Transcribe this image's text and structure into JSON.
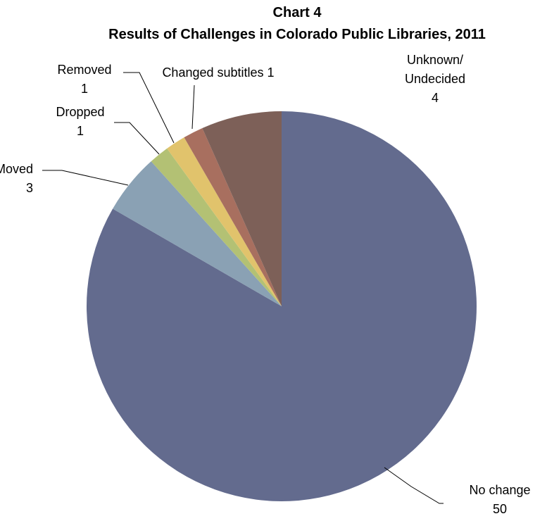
{
  "chart_data": {
    "type": "pie",
    "title": "Chart 4",
    "subtitle": "Results of Challenges in Colorado Public Libraries, 2011",
    "legend": "none",
    "slices": [
      {
        "name": "No change",
        "label_lines": [
          "No change"
        ],
        "value": 50,
        "value_text": "50",
        "color": "#636b8e"
      },
      {
        "name": "Moved",
        "label_lines": [
          "Moved"
        ],
        "value": 3,
        "value_text": "3",
        "color": "#8aa1b4"
      },
      {
        "name": "Dropped",
        "label_lines": [
          "Dropped"
        ],
        "value": 1,
        "value_text": "1",
        "color": "#b3c174"
      },
      {
        "name": "Removed",
        "label_lines": [
          "Removed"
        ],
        "value": 1,
        "value_text": "1",
        "color": "#e1c36c"
      },
      {
        "name": "Changed subtitles",
        "label_lines": [
          "Changed subtitles"
        ],
        "value": 1,
        "value_text": "1",
        "color": "#a86f5f"
      },
      {
        "name": "Unknown/ Undecided",
        "label_lines": [
          "Unknown/",
          "Undecided"
        ],
        "value": 4,
        "value_text": "4",
        "color": "#7d6058"
      }
    ]
  }
}
